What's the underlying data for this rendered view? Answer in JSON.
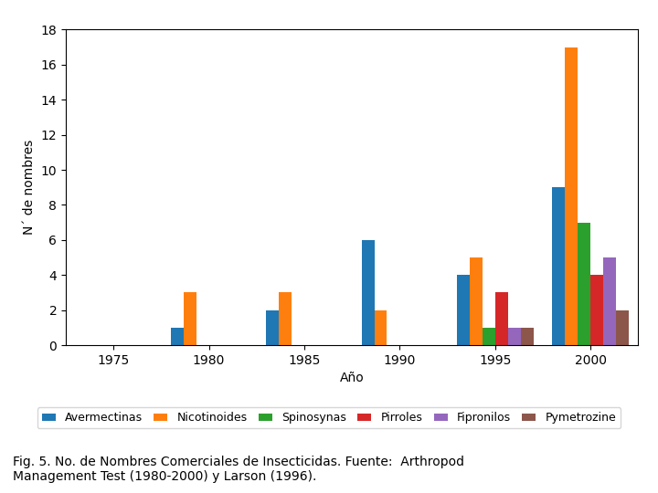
{
  "chart_data": {
    "type": "bar",
    "title": "",
    "xlabel": "Año",
    "ylabel": "N´ de nombres",
    "caption": "Fig. 5. No. de Nombres Comerciales de Insecticidas. Fuente:  Arthropod\nManagement Test (1980-2000) y Larson (1996).",
    "categories": [
      "1975",
      "1980",
      "1985",
      "1990",
      "1995",
      "2000"
    ],
    "series": [
      {
        "name": "Avermectinas",
        "values": [
          0,
          1,
          2,
          6,
          4,
          9
        ]
      },
      {
        "name": "Nicotinoides",
        "values": [
          0,
          3,
          3,
          2,
          5,
          17
        ]
      },
      {
        "name": "Spinosynas",
        "values": [
          0,
          0,
          0,
          0,
          1,
          7
        ]
      },
      {
        "name": "Pirroles",
        "values": [
          0,
          0,
          0,
          0,
          3,
          4
        ]
      },
      {
        "name": "Fipronilos",
        "values": [
          0,
          0,
          0,
          0,
          1,
          5
        ]
      },
      {
        "name": "Pymetrozine",
        "values": [
          0,
          0,
          0,
          0,
          1,
          2
        ]
      }
    ],
    "ylim": [
      0,
      18
    ],
    "yticks": [
      0,
      2,
      4,
      6,
      8,
      10,
      12,
      14,
      16,
      18
    ],
    "grid": false,
    "legend": "upper center"
  }
}
